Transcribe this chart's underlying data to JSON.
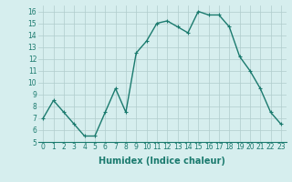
{
  "x": [
    0,
    1,
    2,
    3,
    4,
    5,
    6,
    7,
    8,
    9,
    10,
    11,
    12,
    13,
    14,
    15,
    16,
    17,
    18,
    19,
    20,
    21,
    22,
    23
  ],
  "y": [
    7,
    8.5,
    7.5,
    6.5,
    5.5,
    5.5,
    7.5,
    9.5,
    7.5,
    12.5,
    13.5,
    15,
    15.2,
    14.7,
    14.2,
    16,
    15.7,
    15.7,
    14.7,
    12.2,
    11,
    9.5,
    7.5,
    6.5
  ],
  "line_color": "#1a7a6e",
  "marker": "+",
  "marker_size": 3.5,
  "line_width": 1.0,
  "bg_color": "#d6eeee",
  "grid_color": "#b0cccc",
  "xlabel": "Humidex (Indice chaleur)",
  "xlabel_fontsize": 7,
  "xlim": [
    -0.5,
    23.5
  ],
  "ylim": [
    5,
    16.5
  ],
  "yticks": [
    5,
    6,
    7,
    8,
    9,
    10,
    11,
    12,
    13,
    14,
    15,
    16
  ],
  "xticks": [
    0,
    1,
    2,
    3,
    4,
    5,
    6,
    7,
    8,
    9,
    10,
    11,
    12,
    13,
    14,
    15,
    16,
    17,
    18,
    19,
    20,
    21,
    22,
    23
  ],
  "tick_label_fontsize": 5.5,
  "tick_color": "#1a7a6e"
}
